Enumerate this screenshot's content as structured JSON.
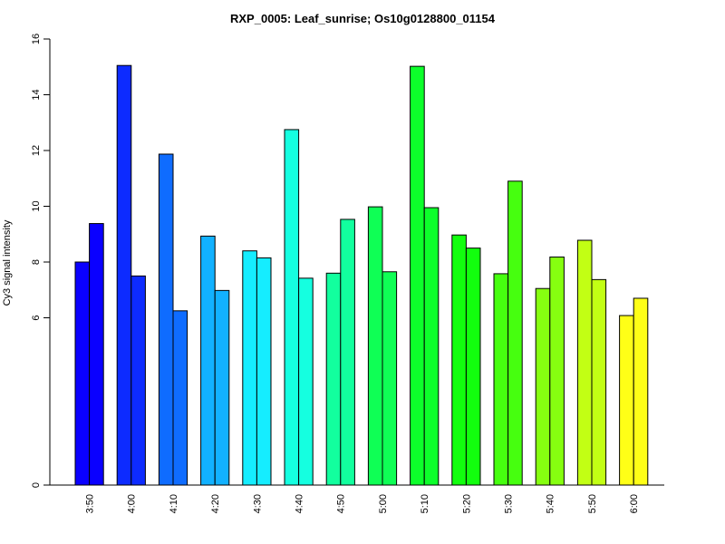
{
  "chart_data": {
    "type": "bar",
    "title": "RXP_0005: Leaf_sunrise; Os10g0128800_01154",
    "xlabel": "",
    "ylabel": "Cy3 signal intensity",
    "categories": [
      "3:50",
      "4:00",
      "4:10",
      "4:20",
      "4:30",
      "4:40",
      "4:50",
      "5:00",
      "5:10",
      "5:20",
      "5:30",
      "5:40",
      "5:50",
      "6:00"
    ],
    "series": [
      {
        "values": [
          8.0,
          15.05,
          11.87,
          8.93,
          8.4,
          12.75,
          7.6,
          9.98,
          15.02,
          8.97,
          7.58,
          7.05,
          8.78,
          6.08
        ]
      },
      {
        "values": [
          9.38,
          7.5,
          6.25,
          6.98,
          8.15,
          7.42,
          9.53,
          7.65,
          9.95,
          8.5,
          10.9,
          8.18,
          7.37,
          6.7
        ]
      }
    ],
    "colors": [
      "#0A00FF",
      "#0D2BFF",
      "#0F6CFF",
      "#12B1FF",
      "#15EDFF",
      "#15FFE0",
      "#12FF9E",
      "#0FFF55",
      "#0DFF2B",
      "#12FF0E",
      "#46FF0F",
      "#86FF10",
      "#C2FF14",
      "#FFFF17"
    ],
    "ylim": [
      0,
      16
    ],
    "yticks": [
      0,
      6,
      8,
      10,
      12,
      14,
      16
    ],
    "grid": false,
    "legend": "none"
  }
}
